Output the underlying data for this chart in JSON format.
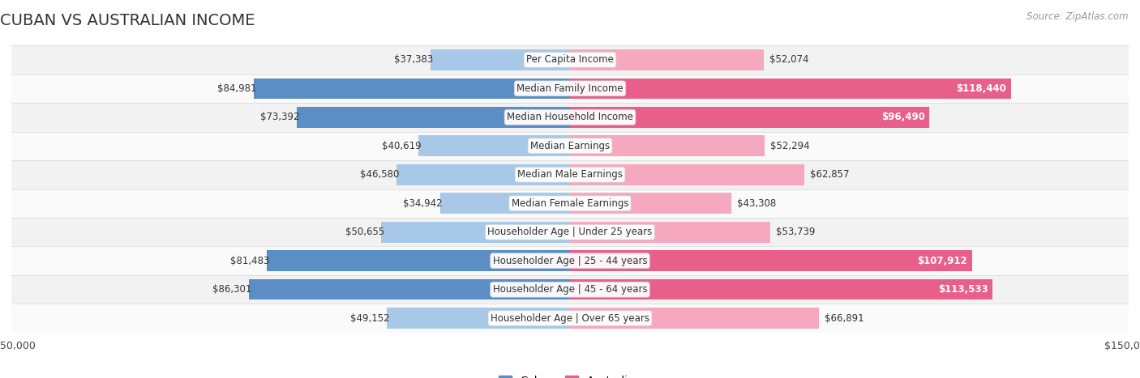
{
  "title": "CUBAN VS AUSTRALIAN INCOME",
  "source": "Source: ZipAtlas.com",
  "categories": [
    "Per Capita Income",
    "Median Family Income",
    "Median Household Income",
    "Median Earnings",
    "Median Male Earnings",
    "Median Female Earnings",
    "Householder Age | Under 25 years",
    "Householder Age | 25 - 44 years",
    "Householder Age | 45 - 64 years",
    "Householder Age | Over 65 years"
  ],
  "cuban_values": [
    37383,
    84981,
    73392,
    40619,
    46580,
    34942,
    50655,
    81483,
    86301,
    49152
  ],
  "australian_values": [
    52074,
    118440,
    96490,
    52294,
    62857,
    43308,
    53739,
    107912,
    113533,
    66891
  ],
  "cuban_color_strong": "#5b8ec4",
  "cuban_color_light": "#a8c8e8",
  "australian_color_strong": "#e8608a",
  "australian_color_light": "#f5a8c0",
  "bar_height": 0.72,
  "max_value": 150000,
  "bg_row_light": "#f2f2f2",
  "bg_row_white": "#fafafa",
  "label_fontsize": 8.5,
  "title_fontsize": 14,
  "source_fontsize": 8.5,
  "cuban_threshold": 70000,
  "australian_threshold": 90000
}
